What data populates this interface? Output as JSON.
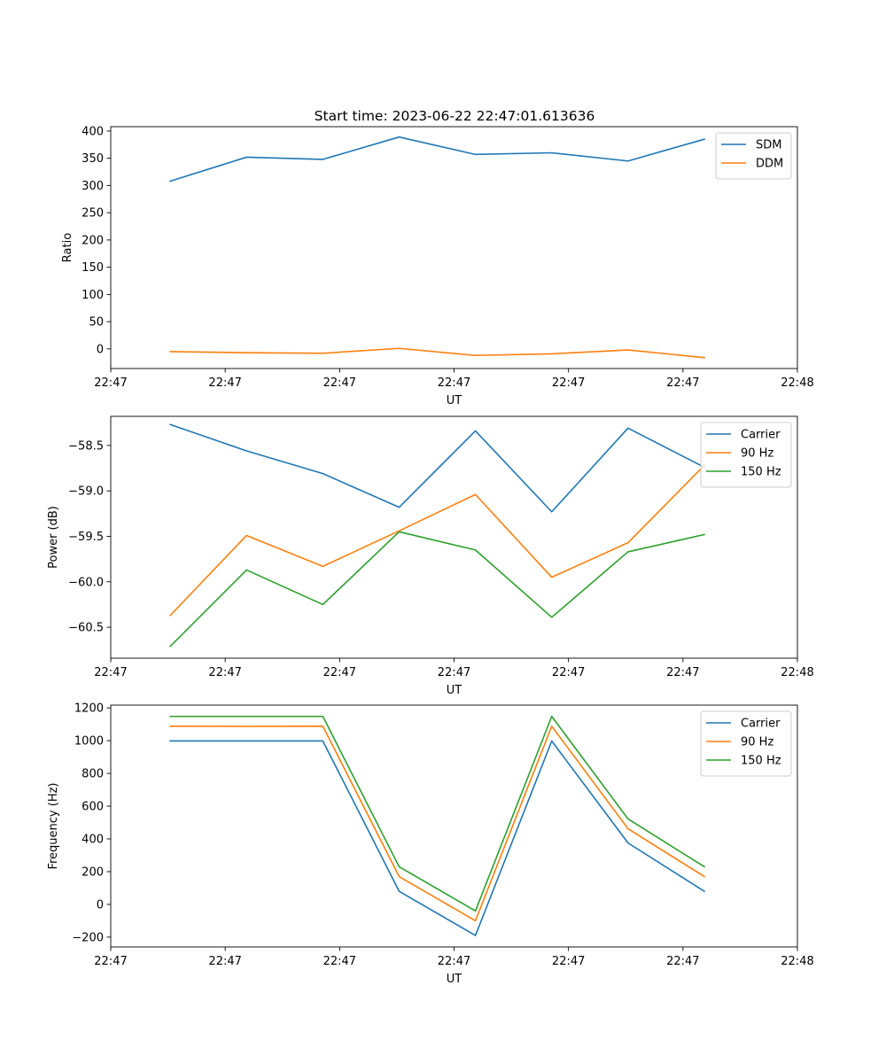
{
  "figure": {
    "title": "Start time: 2023-06-22 22:47:01.613636"
  },
  "chart_data": [
    {
      "type": "line",
      "xlabel": "UT",
      "ylabel": "Ratio",
      "x": [
        1,
        2,
        3,
        4,
        5,
        6,
        7,
        8
      ],
      "xlim": [
        0.22,
        9.22
      ],
      "x_ticks": [
        0.22,
        1.72,
        3.22,
        4.72,
        6.22,
        7.72,
        9.22
      ],
      "x_tick_labels": [
        "22:47",
        "22:47",
        "22:47",
        "22:47",
        "22:47",
        "22:47",
        "22:48"
      ],
      "ylim": [
        -36,
        408
      ],
      "y_ticks": [
        0,
        50,
        100,
        150,
        200,
        250,
        300,
        350,
        400
      ],
      "y_tick_labels": [
        "0",
        "50",
        "100",
        "150",
        "200",
        "250",
        "300",
        "350",
        "400"
      ],
      "legend": "top-right",
      "series": [
        {
          "name": "SDM",
          "color": "#1f77b4",
          "values": [
            308,
            352,
            348,
            389,
            357,
            360,
            345,
            385
          ]
        },
        {
          "name": "DDM",
          "color": "#ff7f0e",
          "values": [
            -5,
            -7,
            -8,
            1,
            -12,
            -9,
            -2,
            -16
          ]
        }
      ]
    },
    {
      "type": "line",
      "xlabel": "UT",
      "ylabel": "Power (dB)",
      "x": [
        1,
        2,
        3,
        4,
        5,
        6,
        7,
        8
      ],
      "xlim": [
        0.22,
        9.22
      ],
      "x_ticks": [
        0.22,
        1.72,
        3.22,
        4.72,
        6.22,
        7.72,
        9.22
      ],
      "x_tick_labels": [
        "22:47",
        "22:47",
        "22:47",
        "22:47",
        "22:47",
        "22:47",
        "22:48"
      ],
      "ylim": [
        -60.84,
        -58.18
      ],
      "y_ticks": [
        -60.5,
        -60.0,
        -59.5,
        -59.0,
        -58.5
      ],
      "y_tick_labels": [
        "−60.5",
        "−60.0",
        "−59.5",
        "−59.0",
        "−58.5"
      ],
      "legend": "top-right",
      "series": [
        {
          "name": "Carrier",
          "color": "#1f77b4",
          "values": [
            -58.27,
            -58.56,
            -58.81,
            -59.18,
            -58.34,
            -59.23,
            -58.31,
            -58.74
          ]
        },
        {
          "name": "90 Hz",
          "color": "#ff7f0e",
          "values": [
            -60.37,
            -59.49,
            -59.83,
            -59.44,
            -59.04,
            -59.95,
            -59.57,
            -58.72
          ]
        },
        {
          "name": "150 Hz",
          "color": "#2ca02c",
          "values": [
            -60.71,
            -59.87,
            -60.25,
            -59.45,
            -59.65,
            -60.39,
            -59.67,
            -59.48
          ]
        }
      ]
    },
    {
      "type": "line",
      "xlabel": "UT",
      "ylabel": "Frequency (Hz)",
      "x": [
        1,
        2,
        3,
        4,
        5,
        6,
        7,
        8
      ],
      "xlim": [
        0.22,
        9.22
      ],
      "x_ticks": [
        0.22,
        1.72,
        3.22,
        4.72,
        6.22,
        7.72,
        9.22
      ],
      "x_tick_labels": [
        "22:47",
        "22:47",
        "22:47",
        "22:47",
        "22:47",
        "22:47",
        "22:48"
      ],
      "ylim": [
        -260,
        1217
      ],
      "y_ticks": [
        -200,
        0,
        200,
        400,
        600,
        800,
        1000,
        1200
      ],
      "y_tick_labels": [
        "−200",
        "0",
        "200",
        "400",
        "600",
        "800",
        "1000",
        "1200"
      ],
      "legend": "top-right",
      "series": [
        {
          "name": "Carrier",
          "color": "#1f77b4",
          "values": [
            998,
            998,
            998,
            80,
            -190,
            998,
            375,
            80
          ]
        },
        {
          "name": "90 Hz",
          "color": "#ff7f0e",
          "values": [
            1088,
            1087,
            1088,
            170,
            -100,
            1088,
            462,
            170
          ]
        },
        {
          "name": "150 Hz",
          "color": "#2ca02c",
          "values": [
            1148,
            1148,
            1148,
            230,
            -40,
            1148,
            522,
            230
          ]
        }
      ]
    }
  ]
}
